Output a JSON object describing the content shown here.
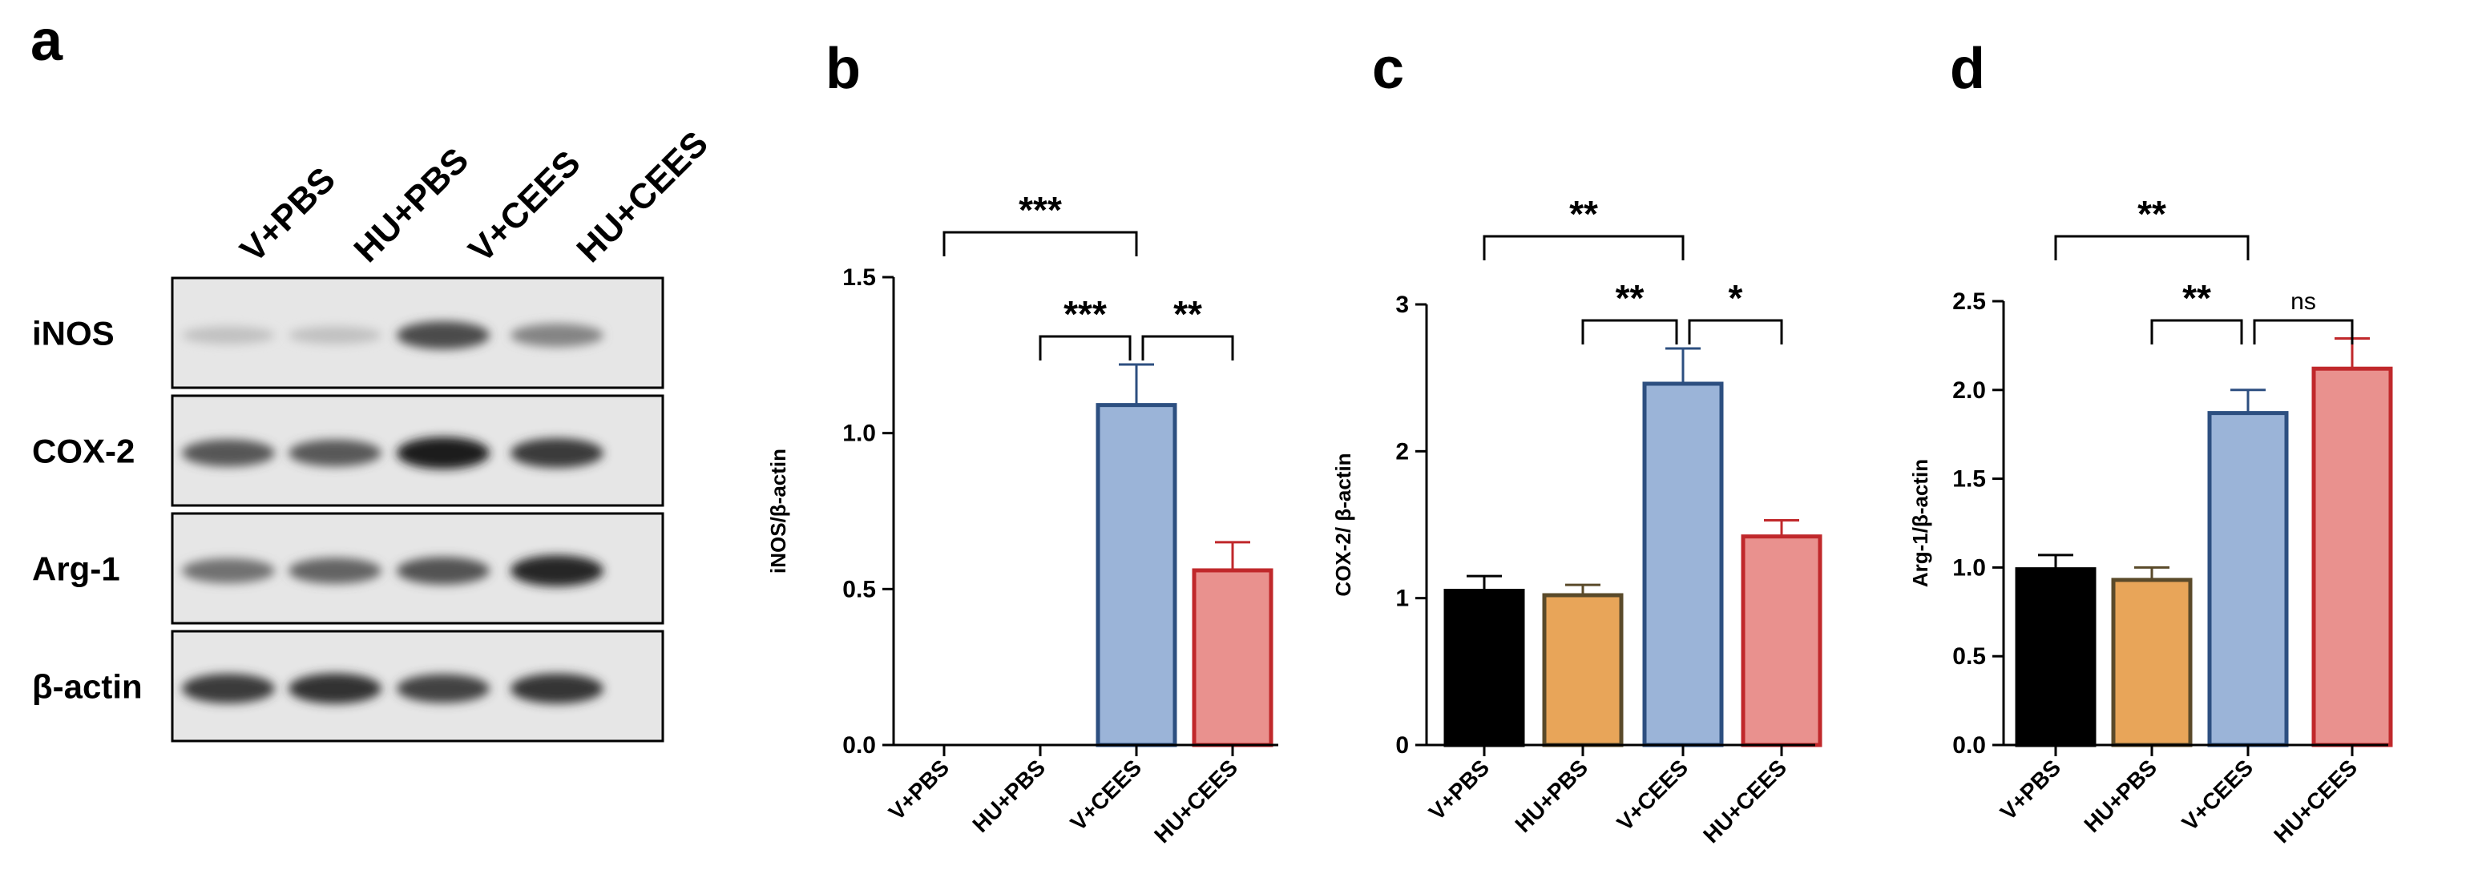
{
  "panel_letters": {
    "a": "a",
    "b": "b",
    "c": "c",
    "d": "d"
  },
  "blot": {
    "lanes": [
      "V+PBS",
      "HU+PBS",
      "V+CEES",
      "HU+CEES"
    ],
    "rows": [
      {
        "label": "iNOS",
        "intensity": [
          0.12,
          0.12,
          0.75,
          0.45
        ]
      },
      {
        "label": "COX-2",
        "intensity": [
          0.7,
          0.68,
          1.0,
          0.85
        ]
      },
      {
        "label": "Arg-1",
        "intensity": [
          0.55,
          0.62,
          0.72,
          0.95
        ]
      },
      {
        "label": "β-actin",
        "intensity": [
          0.85,
          0.9,
          0.8,
          0.88
        ]
      }
    ]
  },
  "chart_data": [
    {
      "panel": "b",
      "type": "bar",
      "categories": [
        "V+PBS",
        "HU+PBS",
        "V+CEES",
        "HU+CEES"
      ],
      "values": [
        0,
        0,
        1.09,
        0.56
      ],
      "errors": [
        0,
        0,
        0.13,
        0.09
      ],
      "ylabel": "iNOS/β-actin",
      "ylim": [
        0,
        1.5
      ],
      "yticks": [
        0.0,
        0.5,
        1.0,
        1.5
      ],
      "ytick_labels": [
        "0.0",
        "0.5",
        "1.0",
        "1.5"
      ],
      "colors": [
        "#000000",
        "#e8a559",
        "#9bb4d8",
        "#e9918e"
      ],
      "edge_colors": [
        "#000000",
        "#5a4a2a",
        "#2d4f80",
        "#c0282b"
      ],
      "significance": [
        {
          "from": 0,
          "to": 2,
          "label": "***",
          "level": 0
        },
        {
          "from": 1,
          "to": 2,
          "label": "***",
          "level": 1
        },
        {
          "from": 2,
          "to": 3,
          "label": "**",
          "level": 1
        }
      ]
    },
    {
      "panel": "c",
      "type": "bar",
      "categories": [
        "V+PBS",
        "HU+PBS",
        "V+CEES",
        "HU+CEES"
      ],
      "values": [
        1.05,
        1.02,
        2.46,
        1.42
      ],
      "errors": [
        0.1,
        0.07,
        0.24,
        0.11
      ],
      "ylabel": "COX-2/ β-actin",
      "ylim": [
        0,
        3
      ],
      "yticks": [
        0,
        1,
        2,
        3
      ],
      "ytick_labels": [
        "0",
        "1",
        "2",
        "3"
      ],
      "colors": [
        "#000000",
        "#e8a559",
        "#9bb4d8",
        "#e9918e"
      ],
      "edge_colors": [
        "#000000",
        "#5a4a2a",
        "#2d4f80",
        "#c0282b"
      ],
      "significance": [
        {
          "from": 0,
          "to": 2,
          "label": "**",
          "level": 0
        },
        {
          "from": 1,
          "to": 2,
          "label": "**",
          "level": 1
        },
        {
          "from": 2,
          "to": 3,
          "label": "*",
          "level": 1
        }
      ]
    },
    {
      "panel": "d",
      "type": "bar",
      "categories": [
        "V+PBS",
        "HU+PBS",
        "V+CEES",
        "HU+CEES"
      ],
      "values": [
        0.99,
        0.93,
        1.87,
        2.12
      ],
      "errors": [
        0.08,
        0.07,
        0.13,
        0.17
      ],
      "ylabel": "Arg-1/β-actin",
      "ylim": [
        0,
        2.5
      ],
      "yticks": [
        0.0,
        0.5,
        1.0,
        1.5,
        2.0,
        2.5
      ],
      "ytick_labels": [
        "0.0",
        "0.5",
        "1.0",
        "1.5",
        "2.0",
        "2.5"
      ],
      "colors": [
        "#000000",
        "#e8a559",
        "#9bb4d8",
        "#e9918e"
      ],
      "edge_colors": [
        "#000000",
        "#5a4a2a",
        "#2d4f80",
        "#c0282b"
      ],
      "significance": [
        {
          "from": 0,
          "to": 2,
          "label": "**",
          "level": 0
        },
        {
          "from": 1,
          "to": 2,
          "label": "**",
          "level": 1
        },
        {
          "from": 2,
          "to": 3,
          "label": "ns",
          "level": 1
        }
      ]
    }
  ]
}
